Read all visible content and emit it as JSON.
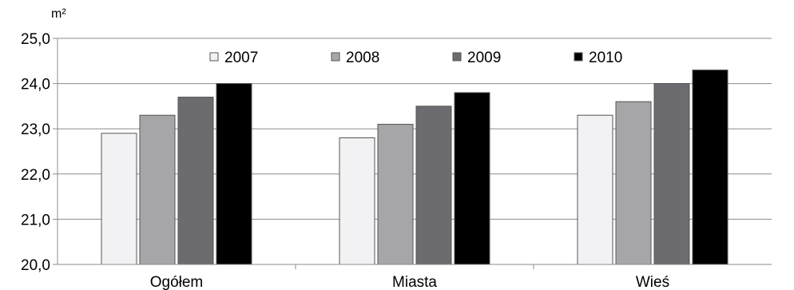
{
  "chart_data": {
    "type": "bar",
    "unit": "m²",
    "categories": [
      "Ogółem",
      "Miasta",
      "Wieś"
    ],
    "series": [
      {
        "name": "2007",
        "color": "#f2f2f4",
        "values": [
          22.9,
          22.8,
          23.3
        ]
      },
      {
        "name": "2008",
        "color": "#a6a6a9",
        "values": [
          23.3,
          23.1,
          23.6
        ]
      },
      {
        "name": "2009",
        "color": "#6b6b70",
        "values": [
          23.7,
          23.5,
          24.0
        ]
      },
      {
        "name": "2010",
        "color": "#000000",
        "values": [
          24.0,
          23.8,
          24.3
        ]
      }
    ],
    "yticks": [
      "20,0",
      "21,0",
      "22,0",
      "23,0",
      "24,0",
      "25,0"
    ],
    "ylim": [
      20,
      25
    ],
    "grid": true,
    "legend_position": "top-center"
  }
}
